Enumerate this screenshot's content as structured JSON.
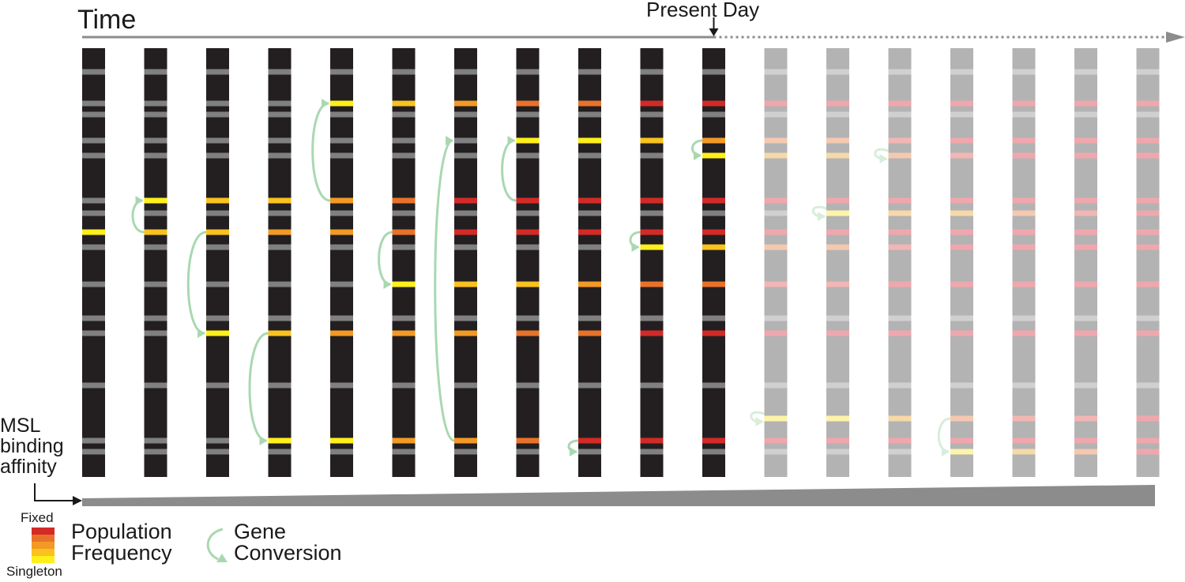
{
  "labels": {
    "time": "Time",
    "present_day": "Present Day",
    "msl_affinity": "MSL\nbinding\naffinity",
    "fixed": "Fixed",
    "singleton": "Singleton",
    "population_frequency": "Population\nFrequency",
    "gene_conversion": "Gene\nConversion"
  },
  "colors": {
    "past_chromosome": "#231f20",
    "future_chromosome": "#b3b3b3",
    "site_past": "#808080",
    "site_future": "#d0d0d0",
    "timeline": "#8c8c8c",
    "affinity_wedge": "#8c8c8c",
    "gene_conversion_arrow": "#a9d8b0",
    "frequency_scale": [
      "#ffef1a",
      "#f9c21e",
      "#f29a25",
      "#e9722a",
      "#d42a27"
    ],
    "frequency_scale_faded": [
      "#fdf4a8",
      "#f7d9a8",
      "#f5c8b0",
      "#f2b6b4",
      "#efa7ad"
    ]
  },
  "diagram": {
    "num_chromosomes": 18,
    "present_day_index": 10,
    "sites": 20,
    "chromosome_states": [
      {
        "highlighted": [
          {
            "site": 7,
            "level": 0
          }
        ]
      },
      {
        "highlighted": [
          {
            "site": 5,
            "level": 0
          },
          {
            "site": 7,
            "level": 1
          }
        ]
      },
      {
        "highlighted": [
          {
            "site": 5,
            "level": 1
          },
          {
            "site": 7,
            "level": 1
          },
          {
            "site": 11,
            "level": 0
          }
        ]
      },
      {
        "highlighted": [
          {
            "site": 5,
            "level": 1
          },
          {
            "site": 7,
            "level": 2
          },
          {
            "site": 11,
            "level": 1
          },
          {
            "site": 14,
            "level": 0
          }
        ]
      },
      {
        "highlighted": [
          {
            "site": 1,
            "level": 0
          },
          {
            "site": 5,
            "level": 2
          },
          {
            "site": 7,
            "level": 2
          },
          {
            "site": 11,
            "level": 2
          },
          {
            "site": 14,
            "level": 0
          }
        ]
      },
      {
        "highlighted": [
          {
            "site": 1,
            "level": 1
          },
          {
            "site": 5,
            "level": 3
          },
          {
            "site": 7,
            "level": 3
          },
          {
            "site": 9,
            "level": 0
          },
          {
            "site": 11,
            "level": 2
          },
          {
            "site": 14,
            "level": 2
          }
        ]
      },
      {
        "highlighted": [
          {
            "site": 1,
            "level": 2
          },
          {
            "site": 5,
            "level": 4
          },
          {
            "site": 7,
            "level": 4
          },
          {
            "site": 9,
            "level": 1
          },
          {
            "site": 11,
            "level": 2
          },
          {
            "site": 14,
            "level": 2
          },
          {
            "site": 17,
            "level": 0
          }
        ]
      },
      {
        "highlighted": [
          {
            "site": 1,
            "level": 3
          },
          {
            "site": 3,
            "level": 0
          },
          {
            "site": 5,
            "level": 4
          },
          {
            "site": 7,
            "level": 4
          },
          {
            "site": 9,
            "level": 1
          },
          {
            "site": 11,
            "level": 3
          },
          {
            "site": 14,
            "level": 3
          },
          {
            "site": 17,
            "level": 1
          }
        ]
      },
      {
        "highlighted": [
          {
            "site": 1,
            "level": 3
          },
          {
            "site": 3,
            "level": 0
          },
          {
            "site": 5,
            "level": 4
          },
          {
            "site": 7,
            "level": 4
          },
          {
            "site": 9,
            "level": 2
          },
          {
            "site": 11,
            "level": 3
          },
          {
            "site": 14,
            "level": 4
          },
          {
            "site": 17,
            "level": 1
          },
          {
            "site": 19,
            "level": 0
          }
        ]
      },
      {
        "highlighted": [
          {
            "site": 1,
            "level": 4
          },
          {
            "site": 3,
            "level": 1
          },
          {
            "site": 5,
            "level": 4
          },
          {
            "site": 7,
            "level": 4
          },
          {
            "site": 8,
            "level": 0
          },
          {
            "site": 9,
            "level": 3
          },
          {
            "site": 11,
            "level": 4
          },
          {
            "site": 14,
            "level": 4
          },
          {
            "site": 17,
            "level": 2
          },
          {
            "site": 19,
            "level": 0
          }
        ]
      },
      {
        "highlighted": [
          {
            "site": 1,
            "level": 4
          },
          {
            "site": 3,
            "level": 2
          },
          {
            "site": 4,
            "level": 0
          },
          {
            "site": 5,
            "level": 4
          },
          {
            "site": 7,
            "level": 4
          },
          {
            "site": 8,
            "level": 1
          },
          {
            "site": 9,
            "level": 3
          },
          {
            "site": 11,
            "level": 4
          },
          {
            "site": 14,
            "level": 4
          },
          {
            "site": 17,
            "level": 3
          },
          {
            "site": 19,
            "level": 1
          }
        ]
      },
      {
        "highlighted": [
          {
            "site": 1,
            "level": 4
          },
          {
            "site": 3,
            "level": 2
          },
          {
            "site": 4,
            "level": 1
          },
          {
            "site": 5,
            "level": 4
          },
          {
            "site": 7,
            "level": 4
          },
          {
            "site": 8,
            "level": 2
          },
          {
            "site": 9,
            "level": 3
          },
          {
            "site": 11,
            "level": 4
          },
          {
            "site": 13,
            "level": 0
          },
          {
            "site": 14,
            "level": 4
          },
          {
            "site": 17,
            "level": 3
          },
          {
            "site": 19,
            "level": 1
          }
        ]
      },
      {
        "highlighted": [
          {
            "site": 1,
            "level": 4
          },
          {
            "site": 3,
            "level": 2
          },
          {
            "site": 4,
            "level": 1
          },
          {
            "site": 5,
            "level": 4
          },
          {
            "site": 6,
            "level": 0
          },
          {
            "site": 7,
            "level": 4
          },
          {
            "site": 8,
            "level": 2
          },
          {
            "site": 9,
            "level": 3
          },
          {
            "site": 11,
            "level": 4
          },
          {
            "site": 13,
            "level": 0
          },
          {
            "site": 14,
            "level": 4
          },
          {
            "site": 17,
            "level": 3
          },
          {
            "site": 19,
            "level": 2
          }
        ]
      },
      {
        "highlighted": [
          {
            "site": 1,
            "level": 4
          },
          {
            "site": 3,
            "level": 3
          },
          {
            "site": 4,
            "level": 2
          },
          {
            "site": 5,
            "level": 4
          },
          {
            "site": 6,
            "level": 1
          },
          {
            "site": 7,
            "level": 4
          },
          {
            "site": 8,
            "level": 3
          },
          {
            "site": 9,
            "level": 4
          },
          {
            "site": 11,
            "level": 4
          },
          {
            "site": 13,
            "level": 1
          },
          {
            "site": 14,
            "level": 4
          },
          {
            "site": 17,
            "level": 4
          },
          {
            "site": 19,
            "level": 3
          }
        ]
      },
      {
        "highlighted": [
          {
            "site": 1,
            "level": 4
          },
          {
            "site": 3,
            "level": 4
          },
          {
            "site": 4,
            "level": 3
          },
          {
            "site": 5,
            "level": 4
          },
          {
            "site": 6,
            "level": 1
          },
          {
            "site": 7,
            "level": 4
          },
          {
            "site": 8,
            "level": 4
          },
          {
            "site": 9,
            "level": 4
          },
          {
            "site": 11,
            "level": 4
          },
          {
            "site": 13,
            "level": 2
          },
          {
            "site": 14,
            "level": 4
          },
          {
            "site": 15,
            "level": 0
          },
          {
            "site": 17,
            "level": 4
          },
          {
            "site": 19,
            "level": 4
          }
        ]
      },
      {
        "highlighted": [
          {
            "site": 1,
            "level": 4
          },
          {
            "site": 3,
            "level": 4
          },
          {
            "site": 4,
            "level": 4
          },
          {
            "site": 5,
            "level": 4
          },
          {
            "site": 6,
            "level": 2
          },
          {
            "site": 7,
            "level": 4
          },
          {
            "site": 8,
            "level": 4
          },
          {
            "site": 9,
            "level": 4
          },
          {
            "site": 11,
            "level": 4
          },
          {
            "site": 13,
            "level": 3
          },
          {
            "site": 14,
            "level": 4
          },
          {
            "site": 15,
            "level": 1
          },
          {
            "site": 17,
            "level": 4
          },
          {
            "site": 19,
            "level": 4
          }
        ]
      },
      {
        "highlighted": [
          {
            "site": 1,
            "level": 4
          },
          {
            "site": 3,
            "level": 4
          },
          {
            "site": 4,
            "level": 4
          },
          {
            "site": 5,
            "level": 4
          },
          {
            "site": 6,
            "level": 3
          },
          {
            "site": 7,
            "level": 4
          },
          {
            "site": 8,
            "level": 4
          },
          {
            "site": 9,
            "level": 4
          },
          {
            "site": 11,
            "level": 4
          },
          {
            "site": 13,
            "level": 3
          },
          {
            "site": 14,
            "level": 4
          },
          {
            "site": 15,
            "level": 2
          },
          {
            "site": 17,
            "level": 4
          },
          {
            "site": 19,
            "level": 4
          }
        ]
      },
      {
        "highlighted": [
          {
            "site": 1,
            "level": 4
          },
          {
            "site": 3,
            "level": 4
          },
          {
            "site": 4,
            "level": 4
          },
          {
            "site": 5,
            "level": 4
          },
          {
            "site": 6,
            "level": 4
          },
          {
            "site": 7,
            "level": 4
          },
          {
            "site": 8,
            "level": 4
          },
          {
            "site": 9,
            "level": 4
          },
          {
            "site": 11,
            "level": 4
          },
          {
            "site": 13,
            "level": 4
          },
          {
            "site": 14,
            "level": 4
          },
          {
            "site": 15,
            "level": 4
          },
          {
            "site": 17,
            "level": 4
          },
          {
            "site": 19,
            "level": 4
          }
        ]
      }
    ],
    "gene_conversions": [
      {
        "chromosome": 1,
        "from_site": 7,
        "to_site": 5
      },
      {
        "chromosome": 2,
        "from_site": 7,
        "to_site": 11
      },
      {
        "chromosome": 3,
        "from_site": 11,
        "to_site": 14
      },
      {
        "chromosome": 4,
        "from_site": 5,
        "to_site": 1
      },
      {
        "chromosome": 5,
        "from_site": 7,
        "to_site": 9
      },
      {
        "chromosome": 6,
        "from_site": 14,
        "to_site": 17
      },
      {
        "chromosome": 7,
        "from_site": 5,
        "to_site": 3
      },
      {
        "chromosome": 8,
        "from_site": 18,
        "to_site": 19
      },
      {
        "chromosome": 9,
        "from_site": 7,
        "to_site": 8
      },
      {
        "chromosome": 10,
        "from_site": 3,
        "to_site": 4
      },
      {
        "chromosome": 11,
        "from_site": 13,
        "to_site": 13
      },
      {
        "chromosome": 12,
        "from_site": 6,
        "to_site": 6
      },
      {
        "chromosome": 13,
        "from_site": 4,
        "to_site": 4
      },
      {
        "chromosome": 14,
        "from_site": 13,
        "to_site": 15
      }
    ]
  }
}
